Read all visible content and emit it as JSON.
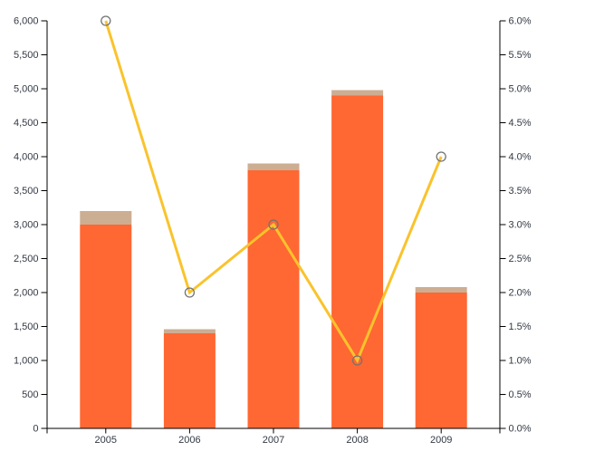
{
  "chart_data": {
    "type": "combo",
    "subtype": "stacked-bar-with-line",
    "title": "",
    "legend": false,
    "grid": false,
    "background": "#ffffff",
    "axis_color": "#000000",
    "label_color": "#333944",
    "categories": [
      "2005",
      "2006",
      "2007",
      "2008",
      "2009"
    ],
    "bar_series": [
      {
        "name": "primary-orange",
        "color": "#FF6733",
        "values": [
          3000,
          1400,
          3800,
          4900,
          2000
        ]
      },
      {
        "name": "secondary-tan",
        "color": "#CCAE93",
        "values": [
          200,
          60,
          100,
          80,
          80
        ]
      }
    ],
    "line_series": {
      "name": "percentage-yellow-line",
      "color": "#FAC32C",
      "marker_stroke": "#737373",
      "marker_fill": "none",
      "values": [
        6.0,
        2.0,
        3.0,
        1.0,
        4.0
      ]
    },
    "left_axis": {
      "min": 0,
      "max": 6000,
      "step": 500,
      "tick_labels": [
        "0",
        "500",
        "1,000",
        "1,500",
        "2,000",
        "2,500",
        "3,000",
        "3,500",
        "4,000",
        "4,500",
        "5,000",
        "5,500",
        "6,000"
      ]
    },
    "right_axis": {
      "min": 0,
      "max": 6,
      "step": 0.5,
      "unit": "%",
      "tick_labels": [
        "0.0%",
        "0.5%",
        "1.0%",
        "1.5%",
        "2.0%",
        "2.5%",
        "3.0%",
        "3.5%",
        "4.0%",
        "4.5%",
        "5.0%",
        "5.5%",
        "6.0%"
      ]
    }
  }
}
